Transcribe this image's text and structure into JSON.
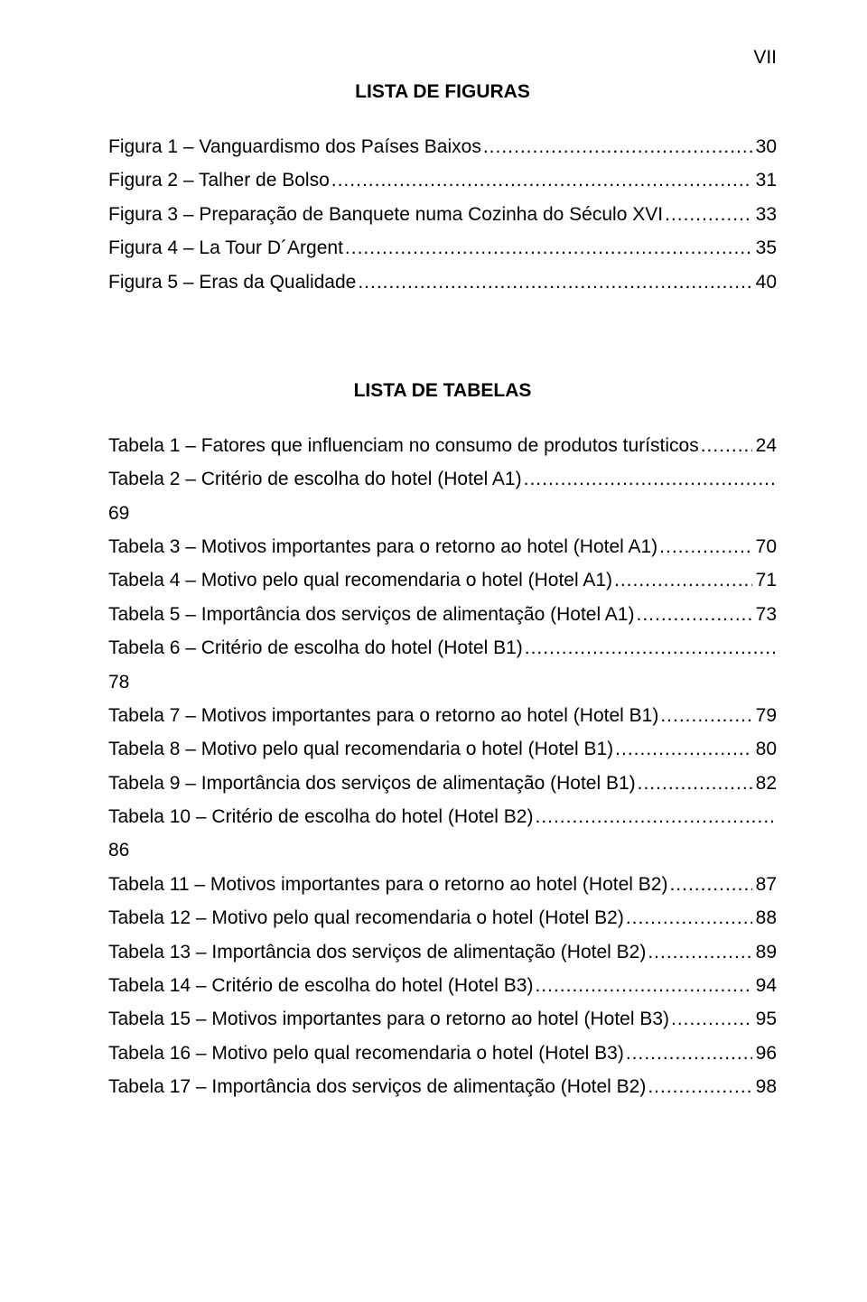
{
  "page_number": "VII",
  "figures_title": "LISTA DE FIGURAS",
  "tables_title": "LISTA DE TABELAS",
  "leader_dots": ".......................................................................................................................................................................................................",
  "figures": [
    {
      "label": "Figura 1 – Vanguardismo dos Países Baixos",
      "page": "30"
    },
    {
      "label": "Figura 2 – Talher de Bolso",
      "page": "31"
    },
    {
      "label": "Figura 3 – Preparação de Banquete numa Cozinha do Século XVI",
      "page": "33"
    },
    {
      "label": "Figura 4 – La Tour D´Argent",
      "page": "35"
    },
    {
      "label": "Figura 5 – Eras da Qualidade",
      "page": "40"
    }
  ],
  "tables": [
    {
      "label": "Tabela 1 – Fatores que influenciam no consumo de produtos turísticos",
      "page": "24"
    },
    {
      "label": "Tabela 2 – Critério de escolha do hotel (Hotel A1)",
      "page": "69",
      "wrap": true
    },
    {
      "label": "Tabela 3 – Motivos importantes para o retorno ao hotel (Hotel A1)",
      "page": "70"
    },
    {
      "label": "Tabela 4 – Motivo pelo qual recomendaria o hotel (Hotel A1)",
      "page": "71"
    },
    {
      "label": "Tabela 5 – Importância dos serviços de alimentação (Hotel A1)",
      "page": "73"
    },
    {
      "label": "Tabela 6 – Critério de escolha do hotel (Hotel B1)",
      "page": "78",
      "wrap": true
    },
    {
      "label": "Tabela 7 – Motivos importantes para o retorno ao hotel (Hotel B1)",
      "page": "79"
    },
    {
      "label": "Tabela 8 – Motivo pelo qual recomendaria o hotel (Hotel B1)",
      "page": "80"
    },
    {
      "label": "Tabela 9 – Importância dos serviços de alimentação (Hotel B1)",
      "page": "82"
    },
    {
      "label": "Tabela 10 – Critério de escolha do hotel (Hotel B2)",
      "page": "86",
      "wrap": true
    },
    {
      "label": "Tabela 11 – Motivos importantes para o retorno ao hotel (Hotel B2)",
      "page": "87"
    },
    {
      "label": "Tabela 12 – Motivo pelo qual recomendaria o hotel (Hotel B2)",
      "page": "88"
    },
    {
      "label": "Tabela 13 – Importância dos serviços de alimentação (Hotel B2)",
      "page": "89"
    },
    {
      "label": "Tabela 14 – Critério de escolha do hotel (Hotel B3)",
      "page": "94"
    },
    {
      "label": "Tabela 15 – Motivos importantes para o retorno ao hotel (Hotel B3)",
      "page": "95"
    },
    {
      "label": "Tabela 16 – Motivo pelo qual recomendaria o hotel (Hotel B3)",
      "page": "96"
    },
    {
      "label": "Tabela 17 – Importância dos serviços de alimentação (Hotel B2)",
      "page": "98"
    }
  ]
}
